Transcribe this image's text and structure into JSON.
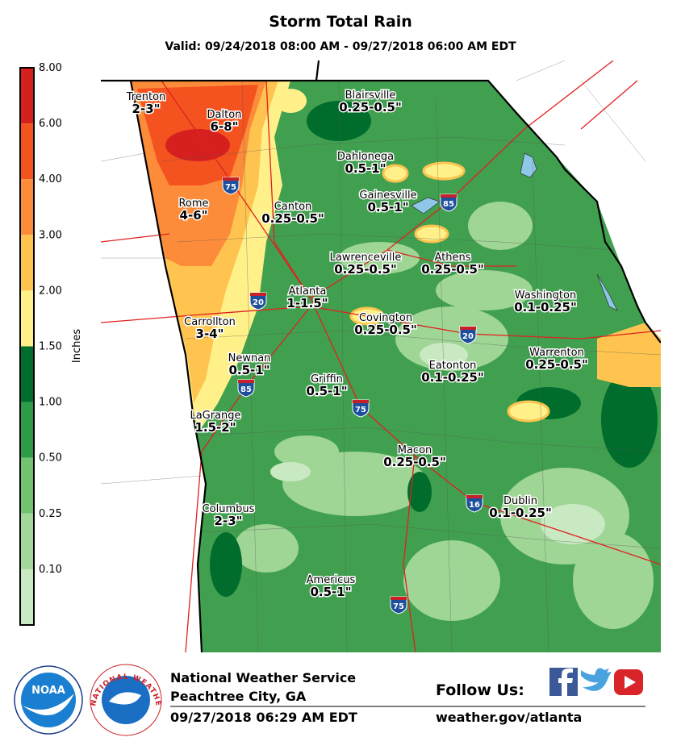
{
  "header": {
    "title": "Storm Total Rain",
    "valid": "Valid: 09/24/2018 08:00 AM - 09/27/2018 06:00 AM EDT"
  },
  "legend": {
    "axis_label": "Inches",
    "levels": [
      {
        "label": "8.00",
        "color": "#d62020"
      },
      {
        "label": "6.00",
        "color": "#f4531f"
      },
      {
        "label": "4.00",
        "color": "#fd8c3a"
      },
      {
        "label": "3.00",
        "color": "#fec44f"
      },
      {
        "label": "2.00",
        "color": "#fff08a"
      },
      {
        "label": "1.50",
        "color": "#006d2c"
      },
      {
        "label": "1.00",
        "color": "#2f9a48"
      },
      {
        "label": "0.50",
        "color": "#72c272"
      },
      {
        "label": "0.25",
        "color": "#a3d89a"
      },
      {
        "label": "0.10",
        "color": "#c9e9c2"
      }
    ]
  },
  "map": {
    "cities": [
      {
        "name": "Trenton",
        "amount": "2-3\""
      },
      {
        "name": "Dalton",
        "amount": "6-8\""
      },
      {
        "name": "Blairsville",
        "amount": "0.25-0.5\""
      },
      {
        "name": "Dahlonega",
        "amount": "0.5-1\""
      },
      {
        "name": "Gainesville",
        "amount": "0.5-1\""
      },
      {
        "name": "Rome",
        "amount": "4-6\""
      },
      {
        "name": "Canton",
        "amount": "0.25-0.5\""
      },
      {
        "name": "Lawrenceville",
        "amount": "0.25-0.5\""
      },
      {
        "name": "Athens",
        "amount": "0.25-0.5\""
      },
      {
        "name": "Atlanta",
        "amount": "1-1.5\""
      },
      {
        "name": "Washington",
        "amount": "0.1-0.25\""
      },
      {
        "name": "Carrollton",
        "amount": "3-4\""
      },
      {
        "name": "Covington",
        "amount": "0.25-0.5\""
      },
      {
        "name": "Warrenton",
        "amount": "0.25-0.5\""
      },
      {
        "name": "Newnan",
        "amount": "0.5-1\""
      },
      {
        "name": "Eatonton",
        "amount": "0.1-0.25\""
      },
      {
        "name": "Griffin",
        "amount": "0.5-1\""
      },
      {
        "name": "LaGrange",
        "amount": "1.5-2\""
      },
      {
        "name": "Macon",
        "amount": "0.25-0.5\""
      },
      {
        "name": "Dublin",
        "amount": "0.1-0.25\""
      },
      {
        "name": "Columbus",
        "amount": "2-3\""
      },
      {
        "name": "Americus",
        "amount": "0.5-1\""
      }
    ],
    "interstates": [
      "75",
      "85",
      "20",
      "20",
      "85",
      "75",
      "16",
      "75"
    ]
  },
  "footer": {
    "agency": "National Weather Service",
    "office": "Peachtree City, GA",
    "issued": "09/27/2018 06:29 AM EDT",
    "follow": "Follow Us:",
    "url": "weather.gov/atlanta",
    "noaa": "NOAA",
    "nws_ring": "NATIONAL WEATHER SERVICE"
  }
}
